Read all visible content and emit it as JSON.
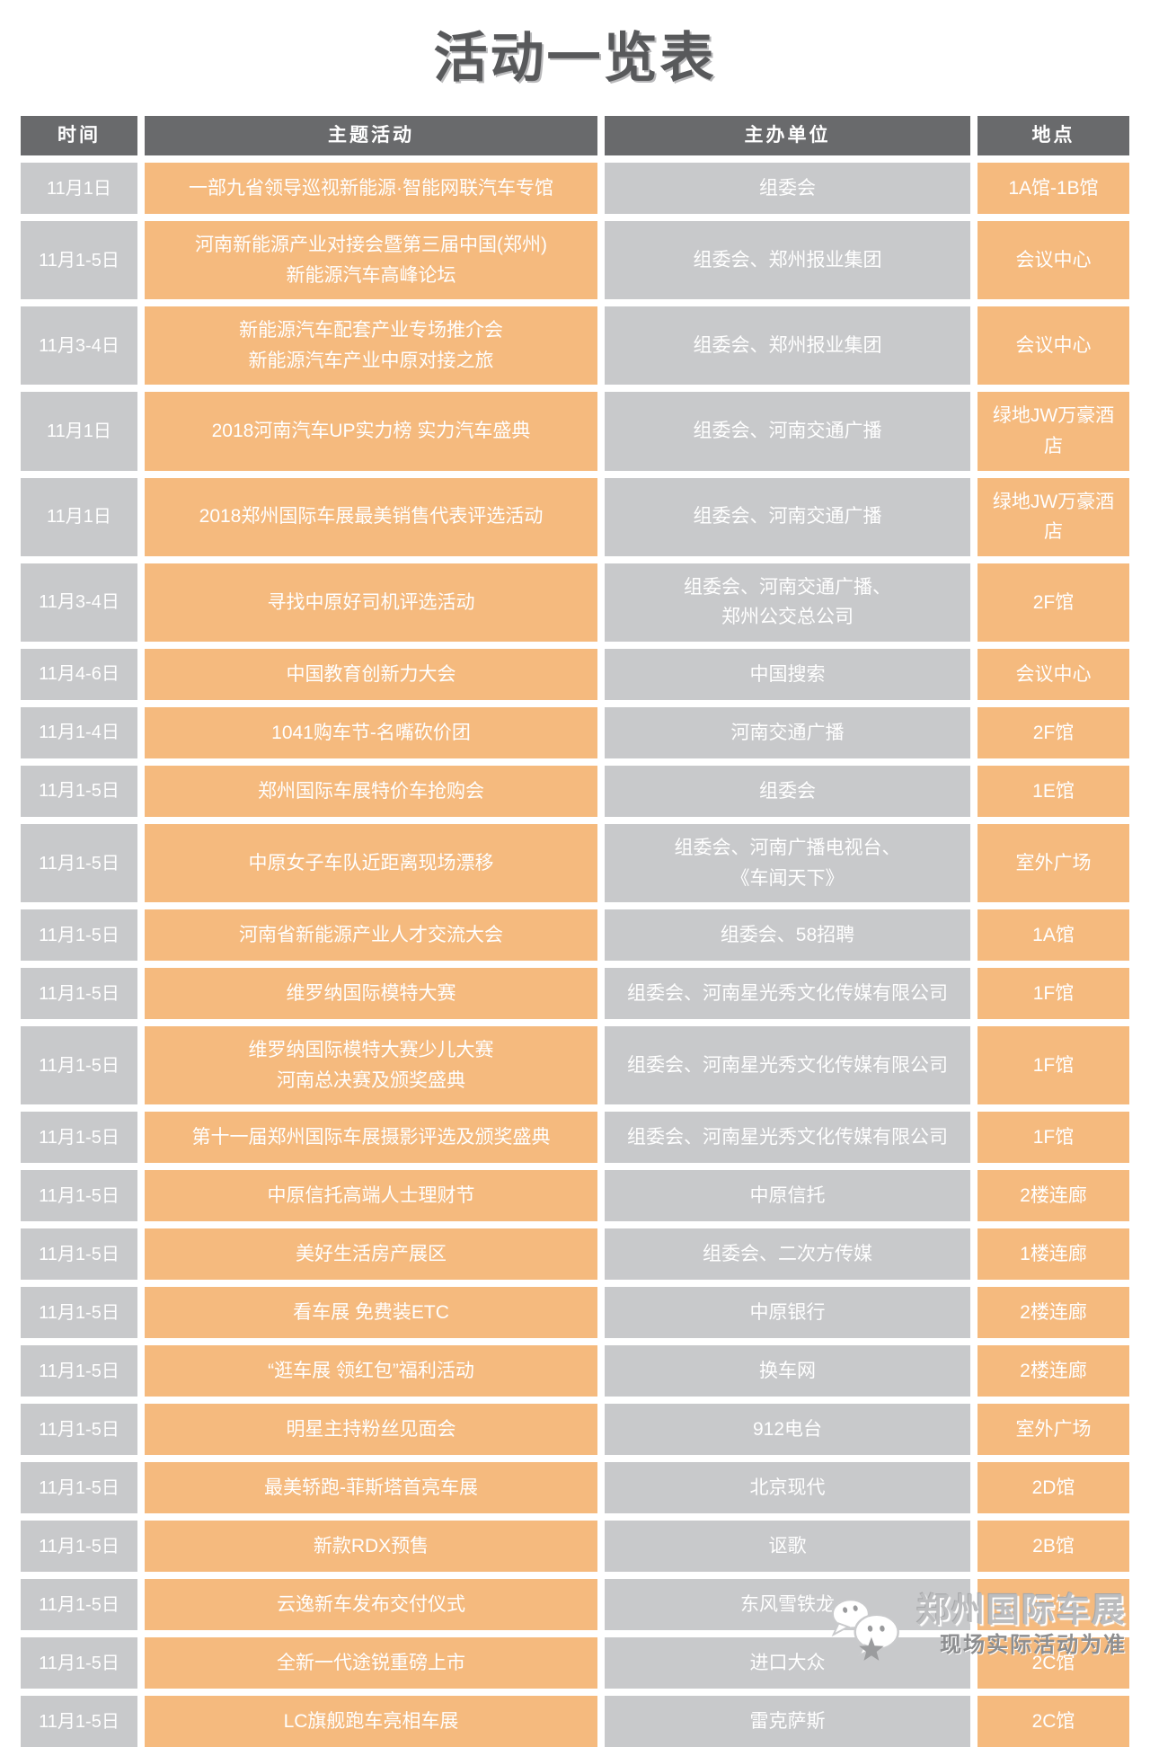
{
  "title": "活动一览表",
  "table": {
    "headers": {
      "time": "时间",
      "activity": "主题活动",
      "organizer": "主办单位",
      "location": "地点"
    },
    "rows": [
      {
        "time": "11月1日",
        "activity": "一部九省领导巡视新能源·智能网联汽车专馆",
        "organizer": "组委会",
        "location": "1A馆-1B馆"
      },
      {
        "time": "11月1-5日",
        "activity": "河南新能源产业对接会暨第三届中国(郑州)\n新能源汽车高峰论坛",
        "organizer": "组委会、郑州报业集团",
        "location": "会议中心"
      },
      {
        "time": "11月3-4日",
        "activity": "新能源汽车配套产业专场推介会\n新能源汽车产业中原对接之旅",
        "organizer": "组委会、郑州报业集团",
        "location": "会议中心"
      },
      {
        "time": "11月1日",
        "activity": "2018河南汽车UP实力榜 实力汽车盛典",
        "organizer": "组委会、河南交通广播",
        "location": "绿地JW万豪酒店"
      },
      {
        "time": "11月1日",
        "activity": "2018郑州国际车展最美销售代表评选活动",
        "organizer": "组委会、河南交通广播",
        "location": "绿地JW万豪酒店"
      },
      {
        "time": "11月3-4日",
        "activity": "寻找中原好司机评选活动",
        "organizer": "组委会、河南交通广播、\n郑州公交总公司",
        "location": "2F馆"
      },
      {
        "time": "11月4-6日",
        "activity": "中国教育创新力大会",
        "organizer": "中国搜索",
        "location": "会议中心"
      },
      {
        "time": "11月1-4日",
        "activity": "1041购车节-名嘴砍价团",
        "organizer": "河南交通广播",
        "location": "2F馆"
      },
      {
        "time": "11月1-5日",
        "activity": "郑州国际车展特价车抢购会",
        "organizer": "组委会",
        "location": "1E馆"
      },
      {
        "time": "11月1-5日",
        "activity": "中原女子车队近距离现场漂移",
        "organizer": "组委会、河南广播电视台、\n《车闻天下》",
        "location": "室外广场"
      },
      {
        "time": "11月1-5日",
        "activity": "河南省新能源产业人才交流大会",
        "organizer": "组委会、58招聘",
        "location": "1A馆"
      },
      {
        "time": "11月1-5日",
        "activity": "维罗纳国际模特大赛",
        "organizer": "组委会、河南星光秀文化传媒有限公司",
        "location": "1F馆"
      },
      {
        "time": "11月1-5日",
        "activity": "维罗纳国际模特大赛少儿大赛\n河南总决赛及颁奖盛典",
        "organizer": "组委会、河南星光秀文化传媒有限公司",
        "location": "1F馆"
      },
      {
        "time": "11月1-5日",
        "activity": "第十一届郑州国际车展摄影评选及颁奖盛典",
        "organizer": "组委会、河南星光秀文化传媒有限公司",
        "location": "1F馆"
      },
      {
        "time": "11月1-5日",
        "activity": "中原信托高端人士理财节",
        "organizer": "中原信托",
        "location": "2楼连廊"
      },
      {
        "time": "11月1-5日",
        "activity": "美好生活房产展区",
        "organizer": "组委会、二次方传媒",
        "location": "1楼连廊"
      },
      {
        "time": "11月1-5日",
        "activity": "看车展 免费装ETC",
        "organizer": "中原银行",
        "location": "2楼连廊"
      },
      {
        "time": "11月1-5日",
        "activity": "“逛车展 领红包”福利活动",
        "organizer": "换车网",
        "location": "2楼连廊"
      },
      {
        "time": "11月1-5日",
        "activity": "明星主持粉丝见面会",
        "organizer": "912电台",
        "location": "室外广场"
      },
      {
        "time": "11月1-5日",
        "activity": "最美轿跑-菲斯塔首亮车展",
        "organizer": "北京现代",
        "location": "2D馆"
      },
      {
        "time": "11月1-5日",
        "activity": "新款RDX预售",
        "organizer": "讴歌",
        "location": "2B馆"
      },
      {
        "time": "11月1-5日",
        "activity": "云逸新车发布交付仪式",
        "organizer": "东风雪铁龙",
        "location": "1E馆"
      },
      {
        "time": "11月1-5日",
        "activity": "全新一代途锐重磅上市",
        "organizer": "进口大众",
        "location": "2C馆"
      },
      {
        "time": "11月1-5日",
        "activity": "LC旗舰跑车亮相车展",
        "organizer": "雷克萨斯",
        "location": "2C馆"
      }
    ]
  },
  "footer": {
    "brand": "郑州国际车展",
    "note": "现场实际活动为准",
    "icon": "wechat-chat-bubbles-star-icon"
  },
  "colors": {
    "accent_orange": "#F5BA7E",
    "cell_gray": "#C8C9CB",
    "header_gray": "#696A6C",
    "title_gray": "#58595B",
    "text_white": "#FFFFFF"
  }
}
